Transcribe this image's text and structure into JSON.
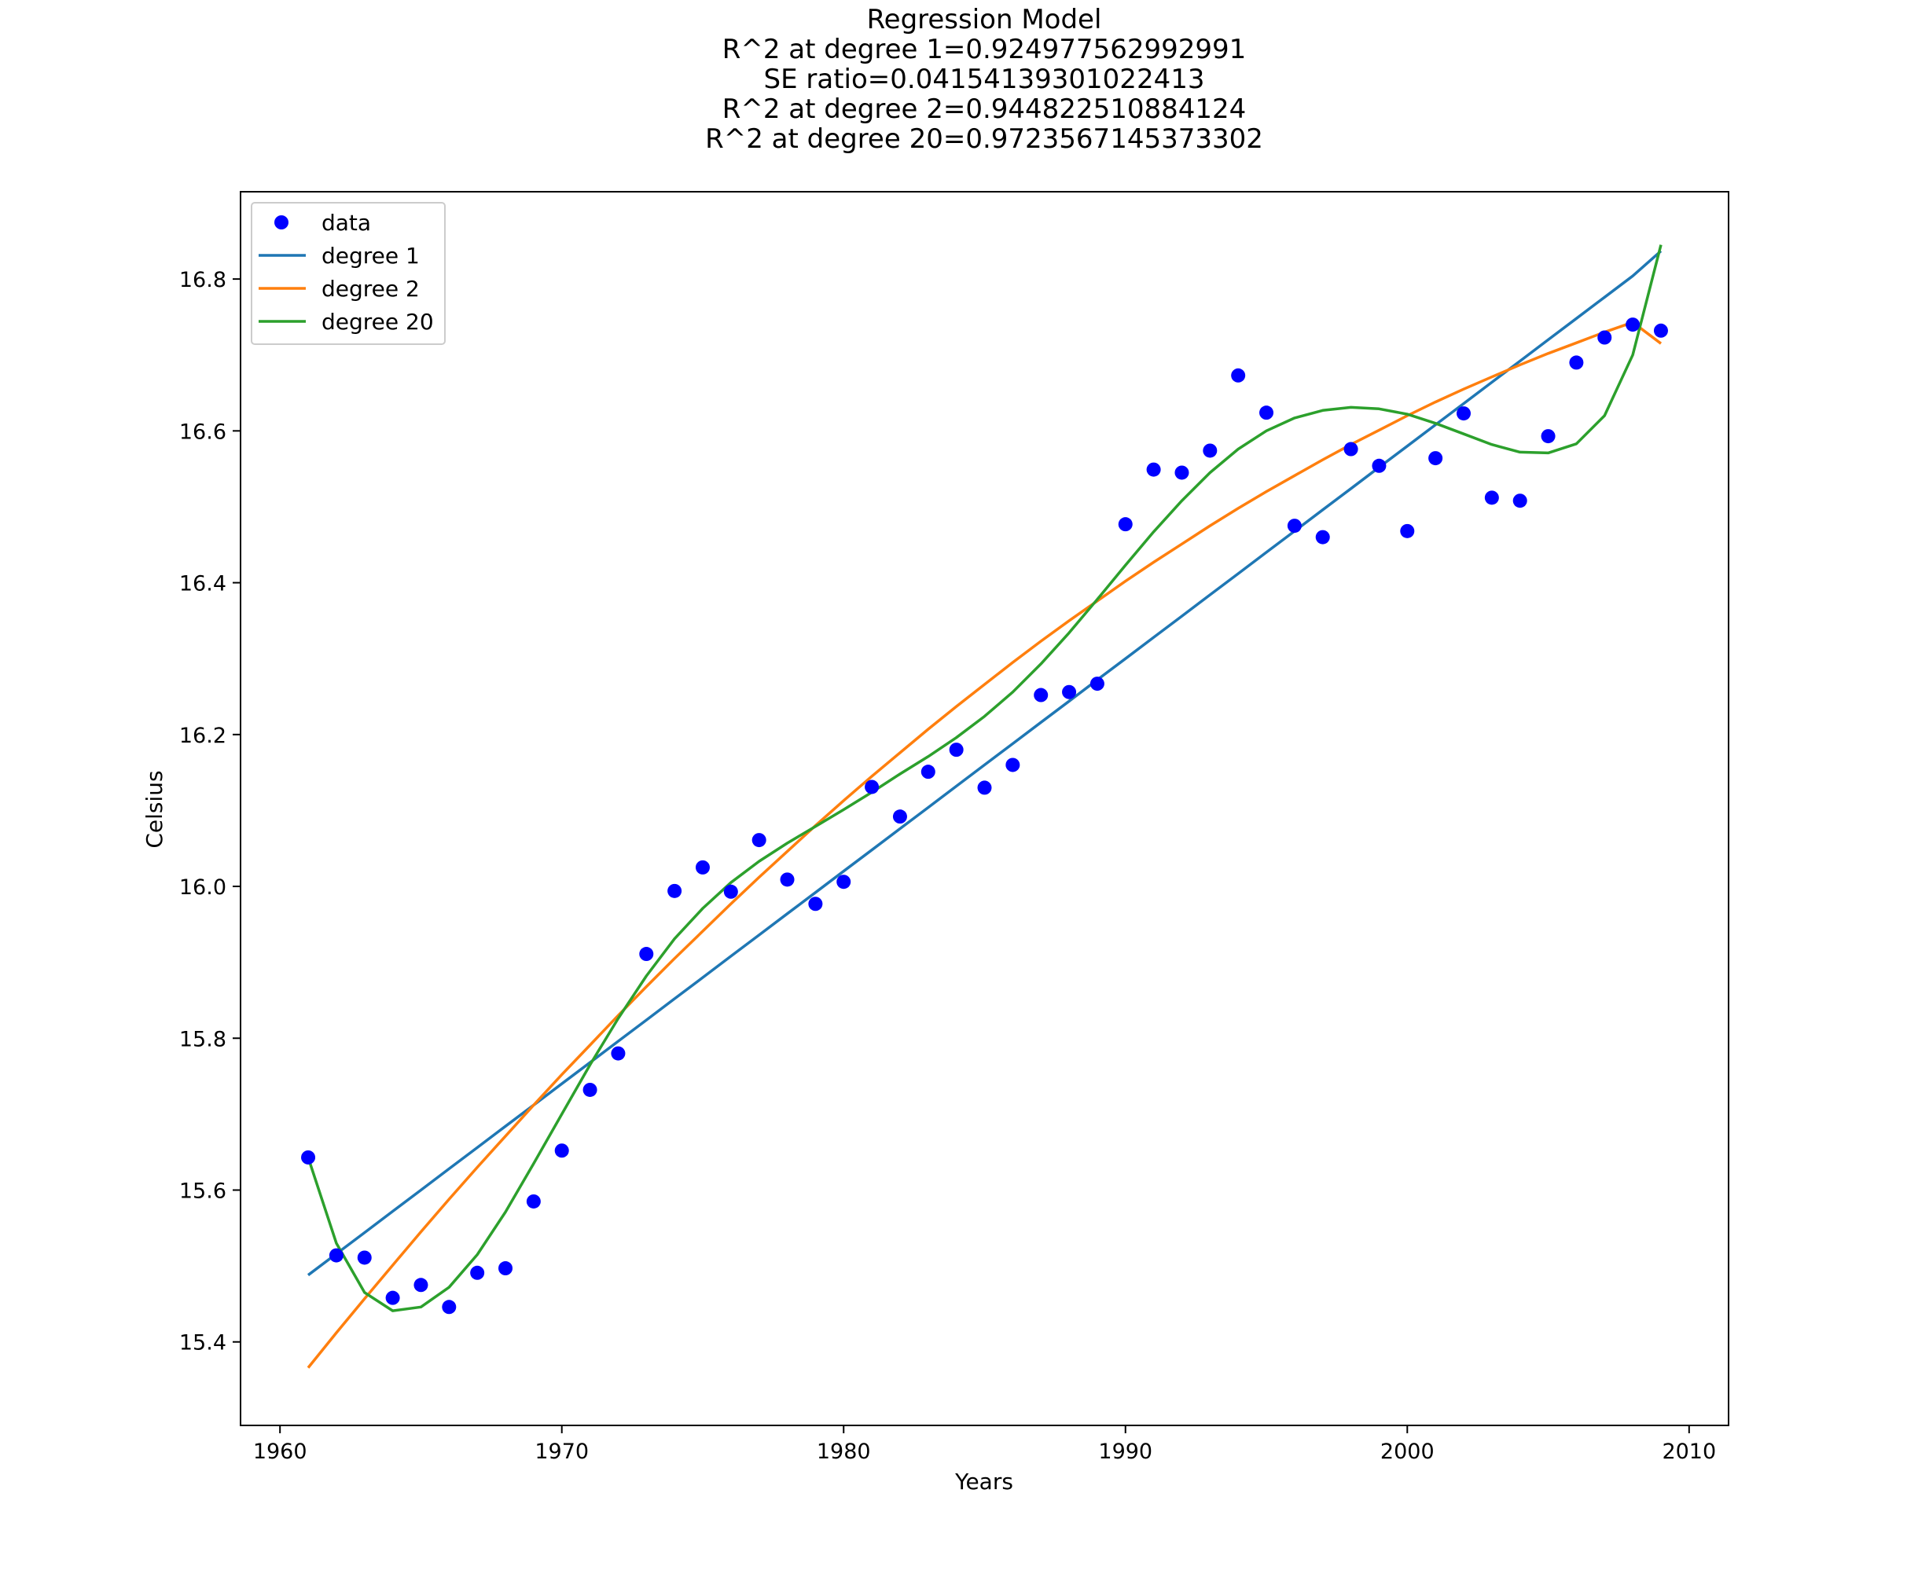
{
  "chart_data": {
    "type": "scatter",
    "title": [
      "Regression Model",
      "R^2 at degree 1=0.924977562992991",
      "SE ratio=0.04154139301022413",
      "R^2 at degree 2=0.944822510884124",
      "R^2 at degree 20=0.9723567145373302"
    ],
    "xlabel": "Years",
    "ylabel": "Celsius",
    "xlim": [
      1958.6,
      2011.4
    ],
    "ylim": [
      15.29,
      16.915
    ],
    "xticks": [
      1960,
      1970,
      1980,
      1990,
      2000,
      2010
    ],
    "yticks": [
      15.4,
      15.6,
      15.8,
      16.0,
      16.2,
      16.4,
      16.6,
      16.8
    ],
    "grid": false,
    "legend_position": "top-left",
    "x": [
      1961,
      1962,
      1963,
      1964,
      1965,
      1966,
      1967,
      1968,
      1969,
      1970,
      1971,
      1972,
      1973,
      1974,
      1975,
      1976,
      1977,
      1978,
      1979,
      1980,
      1981,
      1982,
      1983,
      1984,
      1985,
      1986,
      1987,
      1988,
      1989,
      1990,
      1991,
      1992,
      1993,
      1994,
      1995,
      1996,
      1997,
      1998,
      1999,
      2000,
      2001,
      2002,
      2003,
      2004,
      2005,
      2006,
      2007,
      2008,
      2009
    ],
    "series": [
      {
        "name": "data",
        "kind": "scatter",
        "color": "#0000ff",
        "values": [
          15.643,
          15.514,
          15.511,
          15.458,
          15.475,
          15.446,
          15.491,
          15.497,
          15.585,
          15.652,
          15.732,
          15.78,
          15.911,
          15.994,
          16.025,
          15.993,
          16.061,
          16.009,
          15.977,
          16.006,
          16.131,
          16.092,
          16.151,
          16.18,
          16.13,
          16.16,
          16.252,
          16.256,
          16.267,
          16.477,
          16.549,
          16.545,
          16.574,
          16.673,
          16.624,
          16.475,
          16.46,
          16.576,
          16.554,
          16.468,
          16.564,
          16.623,
          16.512,
          16.508,
          16.593,
          16.69,
          16.723,
          16.74,
          16.732
        ]
      },
      {
        "name": "degree 1",
        "kind": "line",
        "color": "#1f77b4",
        "values": [
          15.488,
          15.516,
          15.544,
          15.572,
          15.6,
          15.628,
          15.656,
          15.684,
          15.712,
          15.74,
          15.768,
          15.796,
          15.824,
          15.852,
          15.88,
          15.908,
          15.936,
          15.964,
          15.992,
          16.02,
          16.048,
          16.076,
          16.104,
          16.132,
          16.16,
          16.188,
          16.216,
          16.244,
          16.272,
          16.3,
          16.328,
          16.356,
          16.384,
          16.412,
          16.44,
          16.468,
          16.496,
          16.524,
          16.552,
          16.58,
          16.608,
          16.636,
          16.664,
          16.692,
          16.72,
          16.748,
          16.776,
          16.804,
          16.837
        ]
      },
      {
        "name": "degree 2",
        "kind": "line",
        "color": "#ff7f0e",
        "values": [
          15.366,
          15.412,
          15.457,
          15.501,
          15.545,
          15.588,
          15.63,
          15.671,
          15.712,
          15.752,
          15.791,
          15.83,
          15.868,
          15.905,
          15.941,
          15.977,
          16.012,
          16.046,
          16.08,
          16.113,
          16.145,
          16.176,
          16.207,
          16.237,
          16.266,
          16.295,
          16.323,
          16.35,
          16.376,
          16.402,
          16.427,
          16.451,
          16.475,
          16.498,
          16.52,
          16.541,
          16.562,
          16.582,
          16.601,
          16.62,
          16.638,
          16.655,
          16.671,
          16.687,
          16.702,
          16.716,
          16.73,
          16.743,
          16.715
        ]
      },
      {
        "name": "degree 20",
        "kind": "line",
        "color": "#2ca02c",
        "values": [
          15.643,
          15.53,
          15.465,
          15.441,
          15.446,
          15.472,
          15.515,
          15.571,
          15.635,
          15.7,
          15.765,
          15.826,
          15.882,
          15.931,
          15.971,
          16.005,
          16.033,
          16.057,
          16.079,
          16.101,
          16.124,
          16.148,
          16.171,
          16.196,
          16.224,
          16.256,
          16.293,
          16.334,
          16.378,
          16.423,
          16.467,
          16.508,
          16.545,
          16.576,
          16.6,
          16.617,
          16.627,
          16.631,
          16.629,
          16.622,
          16.61,
          16.596,
          16.582,
          16.572,
          16.571,
          16.583,
          16.62,
          16.7,
          16.845
        ]
      }
    ]
  }
}
